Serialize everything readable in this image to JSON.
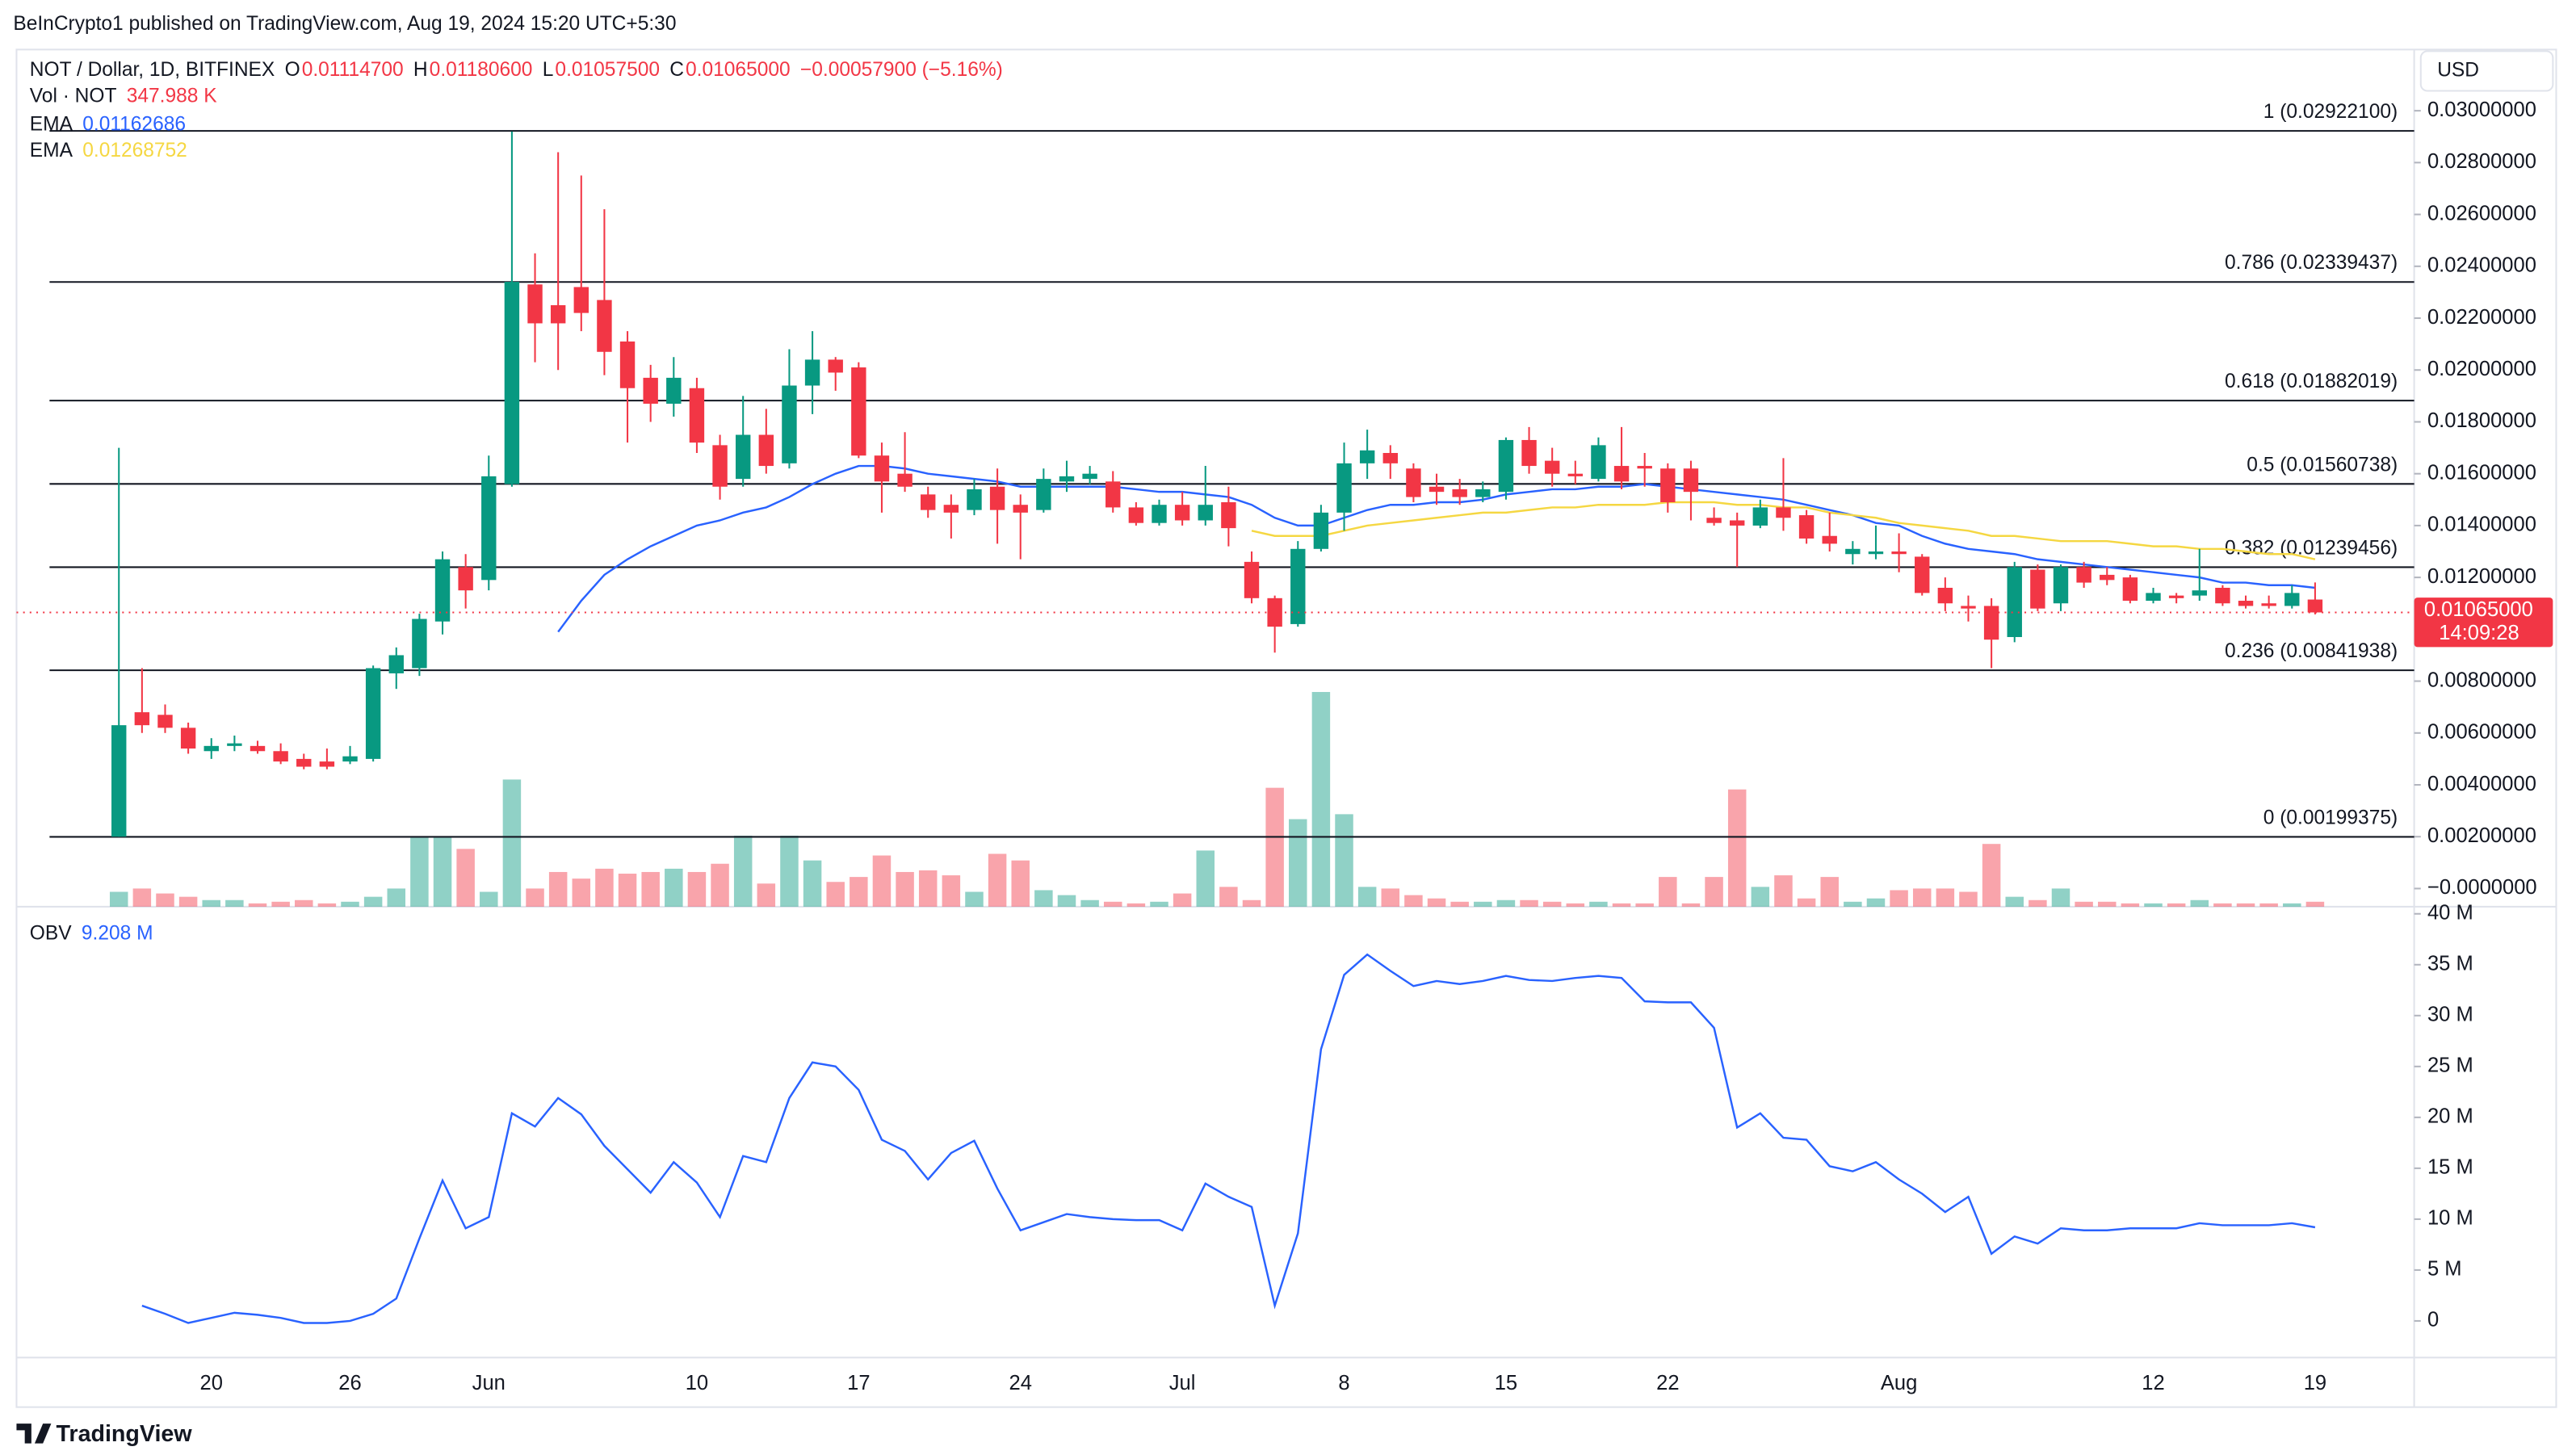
{
  "header": {
    "published": "BeInCrypto1 published on TradingView.com, Aug 19, 2024 15:20 UTC+5:30"
  },
  "footer": {
    "brand": "TradingView"
  },
  "chart_data": {
    "type": "candlestick",
    "currency": "USD",
    "legend": {
      "symbol": "NOT / Dollar, 1D, BITFINEX",
      "ohlc": [
        {
          "key": "O",
          "value": "0.01114700"
        },
        {
          "key": "H",
          "value": "0.01180600"
        },
        {
          "key": "L",
          "value": "0.01057500"
        },
        {
          "key": "C",
          "value": "0.01065000"
        }
      ],
      "change": "−0.00057900 (−5.16%)",
      "volume_name": "Vol · NOT",
      "volume_value": "347.988 K"
    },
    "up_color": "#089981",
    "down_color": "#f23645",
    "categories": [
      null,
      null,
      null,
      null,
      "20",
      null,
      null,
      null,
      null,
      null,
      "26",
      null,
      null,
      null,
      null,
      null,
      "Jun",
      null,
      null,
      null,
      null,
      null,
      null,
      null,
      null,
      "10",
      null,
      null,
      null,
      null,
      null,
      null,
      "17",
      null,
      null,
      null,
      null,
      null,
      null,
      "24",
      null,
      null,
      null,
      null,
      null,
      null,
      "Jul",
      null,
      null,
      null,
      null,
      null,
      null,
      "8",
      null,
      null,
      null,
      null,
      null,
      null,
      "15",
      null,
      null,
      null,
      null,
      null,
      null,
      "22",
      null,
      null,
      null,
      null,
      null,
      null,
      null,
      null,
      null,
      "Aug",
      null,
      null,
      null,
      null,
      null,
      null,
      null,
      null,
      null,
      null,
      "12",
      null,
      null,
      null,
      null,
      null,
      null,
      "19"
    ],
    "open": [
      0.002,
      0.0068,
      0.0067,
      0.0062,
      0.0053,
      0.0055,
      0.0055,
      0.0053,
      0.005,
      0.0049,
      0.0049,
      0.005,
      0.0083,
      0.0085,
      0.0103,
      0.0124,
      0.0119,
      0.0156,
      0.0233,
      0.0225,
      0.0232,
      0.0227,
      0.0211,
      0.0197,
      0.0187,
      0.0193,
      0.0171,
      0.0158,
      0.0175,
      0.0164,
      0.0194,
      0.0204,
      0.0201,
      0.0167,
      0.016,
      0.0152,
      0.0148,
      0.0146,
      0.0155,
      0.0148,
      0.0146,
      0.0157,
      0.0158,
      0.0157,
      0.0147,
      0.0141,
      0.0148,
      0.0142,
      0.0149,
      0.0126,
      0.0112,
      0.0102,
      0.0131,
      0.0145,
      0.0164,
      0.0168,
      0.0162,
      0.0155,
      0.0154,
      0.0151,
      0.0153,
      0.0173,
      0.0165,
      0.016,
      0.0158,
      0.0163,
      0.0163,
      0.0162,
      0.0162,
      0.0143,
      0.0142,
      0.014,
      0.0147,
      0.0144,
      0.0136,
      0.0129,
      0.0129,
      0.013,
      0.0128,
      0.0116,
      0.0109,
      0.0109,
      0.0097,
      0.0123,
      0.011,
      0.0124,
      0.0121,
      0.012,
      0.0111,
      0.0113,
      0.0113,
      0.0116,
      0.0111,
      0.011,
      0.0109,
      0.011147
    ],
    "high": [
      0.017,
      0.0085,
      0.0071,
      0.0064,
      0.0058,
      0.0059,
      0.0057,
      0.0056,
      0.0052,
      0.0054,
      0.0055,
      0.0086,
      0.0093,
      0.0106,
      0.013,
      0.0129,
      0.0167,
      0.0292,
      0.0245,
      0.0284,
      0.0275,
      0.0262,
      0.0215,
      0.0202,
      0.0205,
      0.0197,
      0.0175,
      0.019,
      0.0185,
      0.0208,
      0.0215,
      0.0205,
      0.0203,
      0.0172,
      0.0176,
      0.0155,
      0.0152,
      0.0158,
      0.0162,
      0.0152,
      0.0162,
      0.0165,
      0.0163,
      0.0161,
      0.0149,
      0.015,
      0.0153,
      0.0163,
      0.0155,
      0.013,
      0.0113,
      0.0134,
      0.0148,
      0.0172,
      0.0177,
      0.0171,
      0.0164,
      0.016,
      0.0158,
      0.0157,
      0.0174,
      0.0178,
      0.017,
      0.0165,
      0.0174,
      0.0178,
      0.0168,
      0.0164,
      0.0165,
      0.0147,
      0.0145,
      0.015,
      0.0166,
      0.0146,
      0.0145,
      0.0134,
      0.014,
      0.0137,
      0.0129,
      0.012,
      0.0113,
      0.0112,
      0.0126,
      0.0125,
      0.0125,
      0.0126,
      0.0124,
      0.0121,
      0.0116,
      0.0114,
      0.0131,
      0.0117,
      0.0113,
      0.0113,
      0.0117,
      0.011806
    ],
    "low": [
      0.002,
      0.006,
      0.006,
      0.0052,
      0.005,
      0.0053,
      0.0052,
      0.0048,
      0.0046,
      0.0046,
      0.0048,
      0.0049,
      0.0077,
      0.0082,
      0.0098,
      0.0108,
      0.0115,
      0.0155,
      0.0203,
      0.02,
      0.0215,
      0.0198,
      0.0172,
      0.018,
      0.0182,
      0.0168,
      0.015,
      0.0155,
      0.016,
      0.0162,
      0.0183,
      0.0192,
      0.0166,
      0.0145,
      0.0153,
      0.0143,
      0.0135,
      0.0144,
      0.0133,
      0.0127,
      0.0145,
      0.0153,
      0.0156,
      0.0145,
      0.014,
      0.014,
      0.014,
      0.014,
      0.0132,
      0.011,
      0.0091,
      0.0101,
      0.013,
      0.0138,
      0.0158,
      0.0158,
      0.0149,
      0.0148,
      0.0148,
      0.0149,
      0.015,
      0.016,
      0.0155,
      0.0156,
      0.0157,
      0.0154,
      0.0155,
      0.0145,
      0.0142,
      0.014,
      0.0124,
      0.0139,
      0.0138,
      0.0133,
      0.013,
      0.0125,
      0.0127,
      0.0122,
      0.0113,
      0.0107,
      0.0103,
      0.0085,
      0.0095,
      0.0107,
      0.0107,
      0.0116,
      0.0117,
      0.011,
      0.011,
      0.011,
      0.0111,
      0.0109,
      0.0108,
      0.0108,
      0.0108,
      0.010575
    ],
    "close": [
      0.0063,
      0.0063,
      0.0062,
      0.0054,
      0.0055,
      0.0056,
      0.0053,
      0.0049,
      0.0047,
      0.0047,
      0.0051,
      0.0085,
      0.009,
      0.0104,
      0.0127,
      0.0115,
      0.0159,
      0.0234,
      0.0218,
      0.0218,
      0.0222,
      0.0207,
      0.0193,
      0.0187,
      0.0197,
      0.0172,
      0.0155,
      0.0175,
      0.0163,
      0.0194,
      0.0204,
      0.0199,
      0.0167,
      0.0157,
      0.0155,
      0.0146,
      0.0145,
      0.0154,
      0.0146,
      0.0145,
      0.0158,
      0.0159,
      0.016,
      0.0147,
      0.0141,
      0.0148,
      0.0142,
      0.0148,
      0.0139,
      0.0112,
      0.0101,
      0.0131,
      0.0145,
      0.0164,
      0.0169,
      0.0164,
      0.0151,
      0.0153,
      0.0151,
      0.0154,
      0.0173,
      0.0163,
      0.016,
      0.0159,
      0.0171,
      0.0157,
      0.0162,
      0.0149,
      0.0153,
      0.0141,
      0.014,
      0.0147,
      0.0143,
      0.0135,
      0.0133,
      0.0131,
      0.013,
      0.0129,
      0.0114,
      0.011,
      0.0108,
      0.0096,
      0.0124,
      0.0108,
      0.0124,
      0.0118,
      0.0119,
      0.0111,
      0.0114,
      0.0112,
      0.0115,
      0.011,
      0.0109,
      0.0109,
      0.0114,
      0.01065
    ],
    "volume": [
      1044,
      1276,
      928,
      696,
      464,
      464,
      232,
      348,
      464,
      232,
      348,
      696,
      1276,
      4872,
      4872,
      4060,
      1044,
      8932,
      1276,
      2436,
      1972,
      2668,
      2320,
      2436,
      2668,
      2436,
      3016,
      4988,
      1624,
      4988,
      3248,
      1740,
      2088,
      3596,
      2436,
      2552,
      2204,
      1044,
      3712,
      3248,
      1160,
      812,
      464,
      348,
      232,
      348,
      928,
      3944,
      1392,
      464,
      8352,
      6148,
      15080,
      6496,
      1392,
      1276,
      812,
      580,
      348,
      348,
      464,
      464,
      348,
      232,
      348,
      232,
      232,
      2088,
      232,
      2088,
      8236,
      1392,
      2204,
      580,
      2088,
      348,
      580,
      1160,
      1276,
      1276,
      1044,
      4408,
      696,
      464,
      1276,
      348,
      348,
      232,
      232,
      232,
      464,
      232,
      232,
      232,
      232,
      347.988
    ],
    "ema_series": [
      {
        "name": "EMA",
        "last": "0.01162686",
        "color": "#2962ff",
        "values": [
          null,
          null,
          null,
          null,
          null,
          null,
          null,
          null,
          null,
          null,
          null,
          null,
          null,
          null,
          null,
          null,
          null,
          null,
          null,
          0.0099,
          0.0111,
          0.0121,
          0.0127,
          0.0132,
          0.0136,
          0.014,
          0.0142,
          0.0145,
          0.0147,
          0.0151,
          0.0156,
          0.016,
          0.0163,
          0.0163,
          0.0162,
          0.016,
          0.0159,
          0.0158,
          0.0157,
          0.0155,
          0.0155,
          0.0155,
          0.0155,
          0.0155,
          0.0154,
          0.0153,
          0.0153,
          0.0152,
          0.0151,
          0.0148,
          0.0143,
          0.014,
          0.014,
          0.0143,
          0.0146,
          0.0148,
          0.0148,
          0.0149,
          0.0149,
          0.015,
          0.0152,
          0.0153,
          0.0154,
          0.0154,
          0.0155,
          0.0155,
          0.0156,
          0.0155,
          0.0154,
          0.0153,
          0.0152,
          0.0151,
          0.015,
          0.0148,
          0.0146,
          0.0144,
          0.0141,
          0.014,
          0.0136,
          0.0133,
          0.0131,
          0.013,
          0.0129,
          0.0127,
          0.0126,
          0.0125,
          0.0124,
          0.0123,
          0.0122,
          0.0121,
          0.012,
          0.0118,
          0.0118,
          0.0117,
          0.0117,
          0.0116
        ]
      },
      {
        "name": "EMA",
        "last": "0.01268752",
        "color": "#f5d742",
        "values": [
          null,
          null,
          null,
          null,
          null,
          null,
          null,
          null,
          null,
          null,
          null,
          null,
          null,
          null,
          null,
          null,
          null,
          null,
          null,
          null,
          null,
          null,
          null,
          null,
          null,
          null,
          null,
          null,
          null,
          null,
          null,
          null,
          null,
          null,
          null,
          null,
          null,
          null,
          null,
          null,
          null,
          null,
          null,
          null,
          null,
          null,
          null,
          null,
          null,
          0.0138,
          0.0136,
          0.0136,
          0.0136,
          0.0138,
          0.014,
          0.0141,
          0.0142,
          0.0143,
          0.0144,
          0.0145,
          0.0145,
          0.0146,
          0.0147,
          0.0147,
          0.0148,
          0.0148,
          0.0148,
          0.0149,
          0.0149,
          0.0149,
          0.0148,
          0.0148,
          0.0147,
          0.0147,
          0.0145,
          0.0144,
          0.0143,
          0.0141,
          0.014,
          0.0139,
          0.0138,
          0.0136,
          0.0136,
          0.0135,
          0.0134,
          0.0134,
          0.0134,
          0.0133,
          0.0132,
          0.0132,
          0.0131,
          0.0131,
          0.013,
          0.0129,
          0.0129,
          0.0127
        ]
      }
    ],
    "fib_levels": [
      {
        "value": 0.029221,
        "label": "1 (0.02922100)"
      },
      {
        "value": 0.02339437,
        "label": "0.786 (0.02339437)"
      },
      {
        "value": 0.01882019,
        "label": "0.618 (0.01882019)"
      },
      {
        "value": 0.01560738,
        "label": "0.5 (0.01560738)"
      },
      {
        "value": 0.01239456,
        "label": "0.382 (0.01239456)"
      },
      {
        "value": 0.00841938,
        "label": "0.236 (0.00841938)"
      },
      {
        "value": 0.00199375,
        "label": "0 (0.00199375)"
      }
    ],
    "last_price": {
      "value": 0.01065,
      "label": "0.01065000",
      "countdown": "14:09:28"
    },
    "ylim": [
      -0.0007,
      0.03236
    ],
    "yticks": [
      {
        "value": 0.03,
        "label": "0.03000000"
      },
      {
        "value": 0.028,
        "label": "0.02800000"
      },
      {
        "value": 0.026,
        "label": "0.02600000"
      },
      {
        "value": 0.024,
        "label": "0.02400000"
      },
      {
        "value": 0.022,
        "label": "0.02200000"
      },
      {
        "value": 0.02,
        "label": "0.02000000"
      },
      {
        "value": 0.018,
        "label": "0.01800000"
      },
      {
        "value": 0.016,
        "label": "0.01600000"
      },
      {
        "value": 0.014,
        "label": "0.01400000"
      },
      {
        "value": 0.012,
        "label": "0.01200000"
      },
      {
        "value": 0.008,
        "label": "0.00800000"
      },
      {
        "value": 0.006,
        "label": "0.00600000"
      },
      {
        "value": 0.004,
        "label": "0.00400000"
      },
      {
        "value": 0.002,
        "label": "0.00200000"
      },
      {
        "value": 0,
        "label": "−0.0000000"
      }
    ],
    "obv": {
      "name": "OBV",
      "last": "9.208 M",
      "color": "#2962ff",
      "ylim": [
        -3.6,
        40.7
      ],
      "yticks": [
        0,
        {
          "value": 5,
          "label": "5 M"
        },
        {
          "value": 10,
          "label": "10 M"
        },
        {
          "value": 15,
          "label": "15 M"
        },
        {
          "value": 20,
          "label": "20 M"
        },
        {
          "value": 25,
          "label": "25 M"
        },
        {
          "value": 30,
          "label": "30 M"
        },
        {
          "value": 35,
          "label": "35 M"
        },
        {
          "value": 40,
          "label": "40 M"
        }
      ],
      "values": [
        null,
        1.5,
        0.7,
        -0.2,
        0.3,
        0.8,
        0.6,
        0.3,
        -0.2,
        -0.2,
        0,
        0.7,
        2.2,
        8.1,
        13.8,
        9.1,
        10.2,
        20.4,
        19.1,
        21.9,
        20.3,
        17.2,
        14.9,
        12.6,
        15.6,
        13.6,
        10.2,
        16.2,
        15.6,
        21.9,
        25.4,
        25,
        22.7,
        17.8,
        16.7,
        13.9,
        16.5,
        17.7,
        13,
        8.9,
        9.7,
        10.5,
        10.2,
        10,
        9.9,
        9.9,
        8.9,
        13.5,
        12.2,
        11.2,
        1.5,
        8.6,
        26.7,
        34,
        36,
        34.4,
        32.9,
        33.4,
        33.1,
        33.4,
        33.9,
        33.5,
        33.4,
        33.7,
        33.9,
        33.7,
        31.4,
        31.3,
        31.3,
        28.8,
        19,
        20.4,
        18,
        17.8,
        15.2,
        14.7,
        15.6,
        13.9,
        12.5,
        10.7,
        12.2,
        6.6,
        8.3,
        7.6,
        9.1,
        8.9,
        8.9,
        9.1,
        9.1,
        9.1,
        9.6,
        9.4,
        9.4,
        9.4,
        9.6,
        9.2
      ]
    }
  }
}
